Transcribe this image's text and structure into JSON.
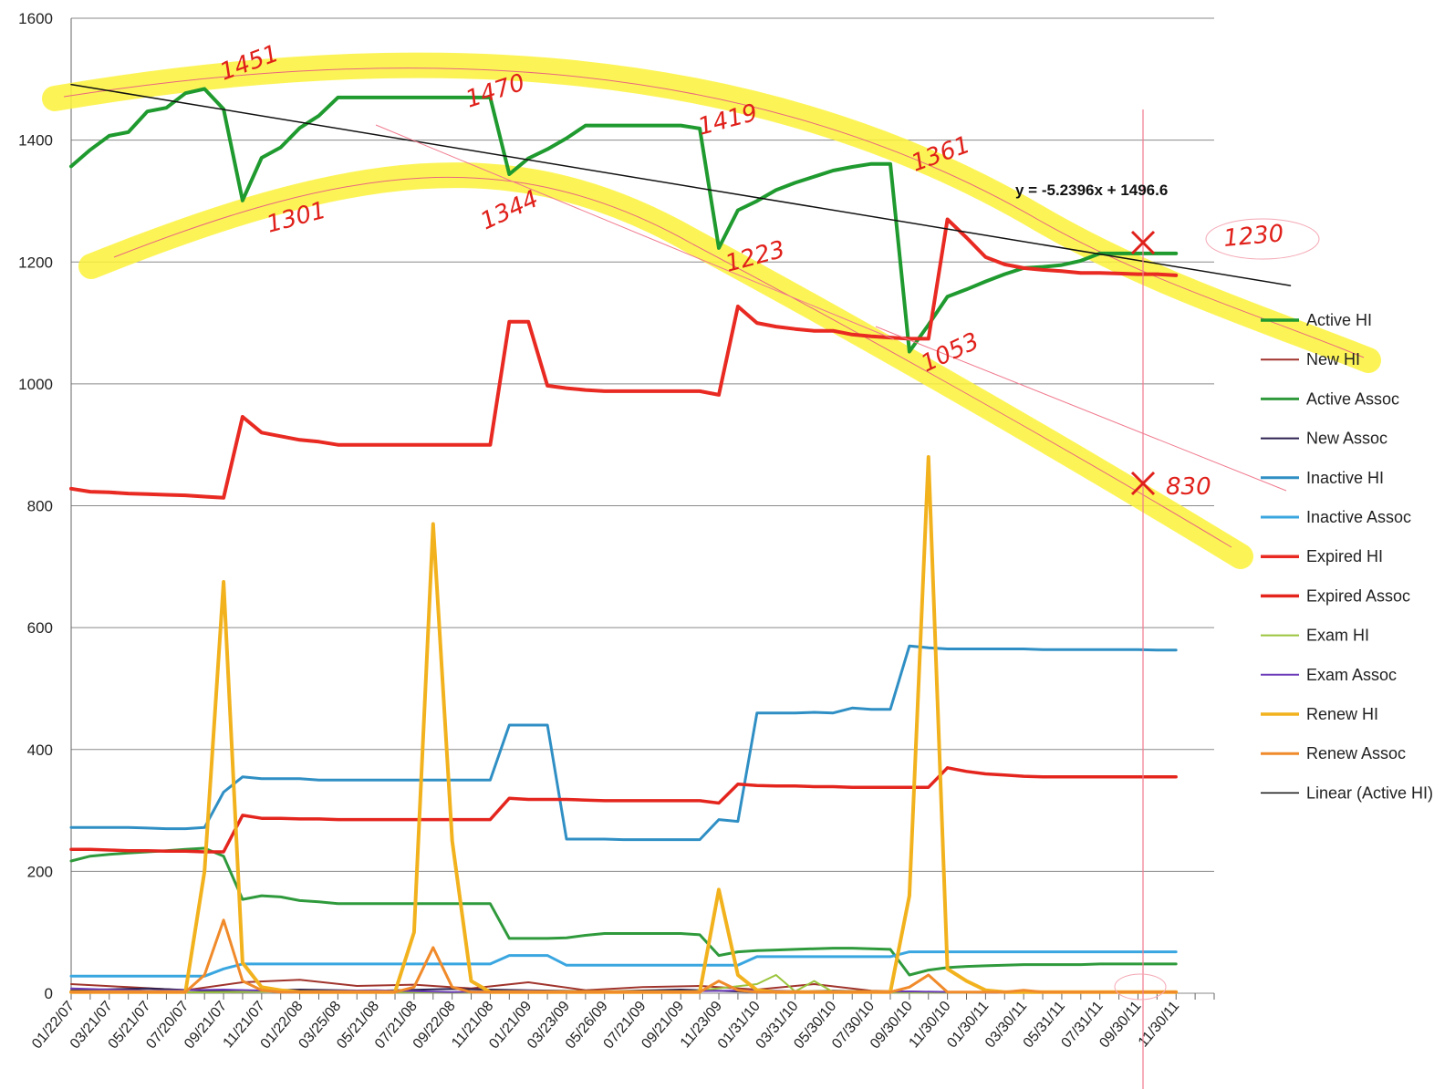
{
  "chart_data": {
    "type": "line",
    "ylim": [
      0,
      1600
    ],
    "yticks": [
      0,
      200,
      400,
      600,
      800,
      1000,
      1200,
      1400,
      1600
    ],
    "xtick_labels": [
      "01/22/07",
      "03/21/07",
      "05/21/07",
      "07/20/07",
      "09/21/07",
      "11/21/07",
      "01/22/08",
      "03/25/08",
      "05/21/08",
      "07/21/08",
      "09/22/08",
      "11/21/08",
      "01/21/09",
      "03/23/09",
      "05/26/09",
      "07/21/09",
      "09/21/09",
      "11/23/09",
      "01/31/10",
      "03/31/10",
      "05/30/10",
      "07/30/10",
      "09/30/10",
      "11/30/10",
      "01/30/11",
      "03/30/11",
      "05/31/11",
      "07/31/11",
      "09/30/11",
      "11/30/11"
    ],
    "x_count": 60,
    "grid": "horizontal",
    "legend_position": "right",
    "series": [
      {
        "name": "Active HI",
        "color": "#1f9a2f",
        "width": 4,
        "x": [
          0,
          1,
          2,
          3,
          4,
          5,
          6,
          7,
          8,
          9,
          10,
          11,
          12,
          13,
          14,
          15,
          16,
          17,
          18,
          19,
          20,
          21,
          22,
          23,
          24,
          25,
          26,
          27,
          28,
          29,
          30,
          31,
          32,
          33,
          34,
          35,
          36,
          37,
          38,
          39,
          40,
          41,
          42,
          43,
          44,
          45,
          46,
          47,
          48,
          49,
          50,
          51,
          52,
          53,
          54,
          55,
          56,
          57,
          58
        ],
        "values": [
          1357,
          1384,
          1407,
          1413,
          1447,
          1453,
          1477,
          1484,
          1451,
          1301,
          1371,
          1388,
          1420,
          1440,
          1470,
          1470,
          1470,
          1470,
          1470,
          1470,
          1470,
          1470,
          1470,
          1344,
          1370,
          1385,
          1403,
          1424,
          1424,
          1424,
          1424,
          1424,
          1424,
          1419,
          1223,
          1285,
          1300,
          1318,
          1330,
          1340,
          1350,
          1356,
          1361,
          1361,
          1053,
          1097,
          1143,
          1155,
          1168,
          1180,
          1190,
          1192,
          1195,
          1202,
          1214,
          1214,
          1214,
          1214,
          1214
        ]
      },
      {
        "name": "New HI",
        "color": "#a0342c",
        "width": 2,
        "x": [
          0,
          3,
          6,
          9,
          12,
          15,
          18,
          21,
          24,
          27,
          30,
          33,
          36,
          39,
          42,
          45,
          48,
          51,
          54,
          57
        ],
        "values": [
          15,
          10,
          5,
          18,
          22,
          12,
          14,
          8,
          18,
          5,
          10,
          12,
          6,
          15,
          4,
          2,
          2,
          2,
          2,
          2
        ]
      },
      {
        "name": "Active Assoc",
        "color": "#2f9a3c",
        "width": 3,
        "x": [
          0,
          1,
          2,
          3,
          4,
          5,
          6,
          7,
          8,
          9,
          10,
          11,
          12,
          13,
          14,
          15,
          16,
          17,
          18,
          19,
          20,
          21,
          22,
          23,
          24,
          25,
          26,
          27,
          28,
          29,
          30,
          31,
          32,
          33,
          34,
          35,
          36,
          37,
          38,
          39,
          40,
          41,
          42,
          43,
          44,
          45,
          46,
          47,
          48,
          49,
          50,
          51,
          52,
          53,
          54,
          55,
          56,
          57,
          58
        ],
        "values": [
          217,
          225,
          228,
          230,
          232,
          234,
          236,
          238,
          225,
          154,
          160,
          158,
          152,
          150,
          147,
          147,
          147,
          147,
          147,
          147,
          147,
          147,
          147,
          90,
          90,
          90,
          91,
          95,
          98,
          98,
          98,
          98,
          98,
          96,
          62,
          68,
          70,
          71,
          72,
          73,
          74,
          74,
          73,
          72,
          30,
          38,
          42,
          44,
          45,
          46,
          47,
          47,
          47,
          47,
          48,
          48,
          48,
          48,
          48
        ]
      },
      {
        "name": "New Assoc",
        "color": "#2b2050",
        "width": 2,
        "x": [
          0,
          4,
          8,
          12,
          16,
          20,
          24,
          28,
          32,
          36,
          40,
          44,
          48,
          52,
          56
        ],
        "values": [
          5,
          8,
          3,
          6,
          4,
          7,
          5,
          3,
          6,
          2,
          4,
          2,
          2,
          1,
          1
        ]
      },
      {
        "name": "Inactive HI",
        "color": "#2f8fc4",
        "width": 3,
        "x": [
          0,
          1,
          2,
          3,
          4,
          5,
          6,
          7,
          8,
          9,
          10,
          11,
          12,
          13,
          14,
          15,
          16,
          17,
          18,
          19,
          20,
          21,
          22,
          23,
          24,
          25,
          26,
          27,
          28,
          29,
          30,
          31,
          32,
          33,
          34,
          35,
          36,
          37,
          38,
          39,
          40,
          41,
          42,
          43,
          44,
          45,
          46,
          47,
          48,
          49,
          50,
          51,
          52,
          53,
          54,
          55,
          56,
          57,
          58
        ],
        "values": [
          272,
          272,
          272,
          272,
          271,
          270,
          270,
          272,
          330,
          355,
          352,
          352,
          352,
          350,
          350,
          350,
          350,
          350,
          350,
          350,
          350,
          350,
          350,
          440,
          440,
          440,
          253,
          253,
          253,
          252,
          252,
          252,
          252,
          252,
          285,
          282,
          460,
          460,
          460,
          461,
          460,
          468,
          466,
          466,
          570,
          567,
          565,
          565,
          565,
          565,
          565,
          564,
          564,
          564,
          564,
          564,
          564,
          563,
          563
        ]
      },
      {
        "name": "Inactive Assoc",
        "color": "#3aa6e0",
        "width": 3,
        "x": [
          0,
          1,
          2,
          3,
          4,
          5,
          6,
          7,
          8,
          9,
          10,
          11,
          12,
          13,
          14,
          15,
          16,
          17,
          18,
          19,
          20,
          21,
          22,
          23,
          24,
          25,
          26,
          27,
          28,
          29,
          30,
          31,
          32,
          33,
          34,
          35,
          36,
          37,
          38,
          39,
          40,
          41,
          42,
          43,
          44,
          45,
          46,
          47,
          48,
          49,
          50,
          51,
          52,
          53,
          54,
          55,
          56,
          57,
          58
        ],
        "values": [
          28,
          28,
          28,
          28,
          28,
          28,
          28,
          28,
          40,
          48,
          48,
          48,
          48,
          48,
          48,
          48,
          48,
          48,
          48,
          48,
          48,
          48,
          48,
          62,
          62,
          62,
          46,
          46,
          46,
          46,
          46,
          46,
          46,
          46,
          46,
          46,
          60,
          60,
          60,
          60,
          60,
          60,
          60,
          60,
          68,
          68,
          68,
          68,
          68,
          68,
          68,
          68,
          68,
          68,
          68,
          68,
          68,
          68,
          68
        ]
      },
      {
        "name": "Expired HI",
        "color": "#e82a22",
        "width": 4,
        "x": [
          0,
          1,
          2,
          3,
          4,
          5,
          6,
          7,
          8,
          9,
          10,
          11,
          12,
          13,
          14,
          15,
          16,
          17,
          18,
          19,
          20,
          21,
          22,
          23,
          24,
          25,
          26,
          27,
          28,
          29,
          30,
          31,
          32,
          33,
          34,
          35,
          36,
          37,
          38,
          39,
          40,
          41,
          42,
          43,
          44,
          45,
          46,
          47,
          48,
          49,
          50,
          51,
          52,
          53,
          54,
          55,
          56,
          57,
          58
        ],
        "values": [
          828,
          823,
          822,
          820,
          819,
          818,
          817,
          815,
          813,
          946,
          920,
          914,
          908,
          905,
          900,
          900,
          900,
          900,
          900,
          900,
          900,
          900,
          900,
          1102,
          1102,
          997,
          993,
          990,
          988,
          988,
          988,
          988,
          988,
          988,
          982,
          1127,
          1100,
          1094,
          1090,
          1087,
          1087,
          1081,
          1078,
          1076,
          1074,
          1074,
          1270,
          1240,
          1208,
          1196,
          1190,
          1187,
          1185,
          1182,
          1182,
          1181,
          1180,
          1180,
          1178
        ]
      },
      {
        "name": "Expired Assoc",
        "color": "#e4251e",
        "width": 3.5,
        "x": [
          0,
          1,
          2,
          3,
          4,
          5,
          6,
          7,
          8,
          9,
          10,
          11,
          12,
          13,
          14,
          15,
          16,
          17,
          18,
          19,
          20,
          21,
          22,
          23,
          24,
          25,
          26,
          27,
          28,
          29,
          30,
          31,
          32,
          33,
          34,
          35,
          36,
          37,
          38,
          39,
          40,
          41,
          42,
          43,
          44,
          45,
          46,
          47,
          48,
          49,
          50,
          51,
          52,
          53,
          54,
          55,
          56,
          57,
          58
        ],
        "values": [
          236,
          236,
          235,
          234,
          234,
          233,
          233,
          232,
          232,
          292,
          287,
          287,
          286,
          286,
          285,
          285,
          285,
          285,
          285,
          285,
          285,
          285,
          285,
          320,
          318,
          318,
          318,
          317,
          316,
          316,
          316,
          316,
          316,
          316,
          312,
          343,
          341,
          340,
          340,
          339,
          339,
          338,
          338,
          338,
          338,
          338,
          370,
          364,
          360,
          358,
          356,
          355,
          355,
          355,
          355,
          355,
          355,
          355,
          355
        ]
      },
      {
        "name": "Exam HI",
        "color": "#9ac43c",
        "width": 2,
        "x": [
          0,
          4,
          8,
          12,
          16,
          20,
          24,
          28,
          32,
          36,
          37,
          38,
          39,
          40,
          44,
          48,
          52,
          56
        ],
        "values": [
          2,
          1,
          2,
          3,
          2,
          1,
          2,
          2,
          1,
          15,
          30,
          3,
          20,
          2,
          1,
          1,
          1,
          1
        ]
      },
      {
        "name": "Exam Assoc",
        "color": "#6b3ab8",
        "width": 2,
        "x": [
          0,
          4,
          8,
          12,
          16,
          20,
          24,
          28,
          32,
          36,
          40,
          44,
          48,
          52,
          56
        ],
        "values": [
          8,
          4,
          6,
          3,
          5,
          2,
          4,
          2,
          3,
          5,
          2,
          3,
          1,
          1,
          1
        ]
      },
      {
        "name": "Renew HI",
        "color": "#f2b21e",
        "width": 4,
        "x": [
          0,
          1,
          2,
          3,
          4,
          5,
          6,
          7,
          8,
          9,
          10,
          11,
          12,
          13,
          14,
          15,
          16,
          17,
          18,
          19,
          20,
          21,
          22,
          23,
          24,
          25,
          26,
          27,
          28,
          29,
          30,
          31,
          32,
          33,
          34,
          35,
          36,
          37,
          38,
          39,
          40,
          41,
          42,
          43,
          44,
          45,
          46,
          47,
          48,
          49,
          50,
          51,
          52,
          53,
          54,
          55,
          56,
          57,
          58
        ],
        "values": [
          2,
          2,
          2,
          2,
          2,
          2,
          2,
          200,
          675,
          50,
          10,
          5,
          2,
          2,
          2,
          2,
          2,
          2,
          100,
          770,
          250,
          20,
          2,
          2,
          2,
          2,
          2,
          2,
          2,
          2,
          2,
          2,
          2,
          2,
          170,
          30,
          5,
          2,
          2,
          2,
          2,
          2,
          2,
          2,
          160,
          880,
          40,
          20,
          5,
          2,
          2,
          2,
          2,
          2,
          2,
          2,
          2,
          2,
          2
        ]
      },
      {
        "name": "Renew Assoc",
        "color": "#f08a2a",
        "width": 3,
        "x": [
          0,
          1,
          2,
          3,
          4,
          5,
          6,
          7,
          8,
          9,
          10,
          11,
          12,
          13,
          14,
          15,
          16,
          17,
          18,
          19,
          20,
          21,
          22,
          23,
          24,
          25,
          26,
          27,
          28,
          29,
          30,
          31,
          32,
          33,
          34,
          35,
          36,
          37,
          38,
          39,
          40,
          41,
          42,
          43,
          44,
          45,
          46,
          47,
          48,
          49,
          50,
          51,
          52,
          53,
          54,
          55,
          56,
          57,
          58
        ],
        "values": [
          2,
          2,
          2,
          2,
          2,
          2,
          2,
          30,
          120,
          20,
          5,
          2,
          2,
          2,
          2,
          2,
          2,
          2,
          10,
          75,
          10,
          2,
          2,
          2,
          2,
          2,
          2,
          2,
          2,
          2,
          2,
          2,
          2,
          2,
          20,
          5,
          2,
          2,
          2,
          2,
          2,
          2,
          2,
          2,
          10,
          30,
          2,
          2,
          2,
          2,
          5,
          2,
          2,
          2,
          2,
          2,
          2,
          2,
          2
        ]
      },
      {
        "name": "Linear (Active HI)",
        "color": "#111111",
        "width": 1.5,
        "x": [
          0,
          64
        ],
        "values": [
          1491.4,
          1161.3
        ]
      }
    ],
    "trendline_equation": "y = -5.2396x + 1496.6",
    "annotations": [
      "1451",
      "1470",
      "1419",
      "1361",
      "1301",
      "1344",
      "1223",
      "1053",
      "1230",
      "830"
    ]
  }
}
